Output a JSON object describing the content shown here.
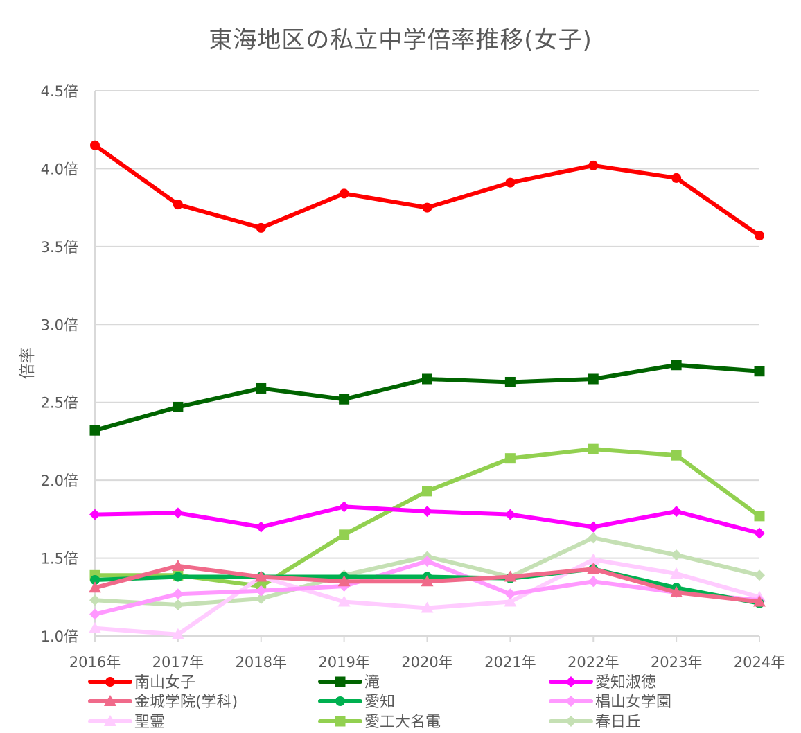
{
  "chart_data": {
    "type": "line",
    "title": "東海地区の私立中学倍率推移(女子)",
    "xlabel": "",
    "ylabel": "倍率",
    "ylim": [
      1.0,
      4.5
    ],
    "y_ticks": [
      1.0,
      1.5,
      2.0,
      2.5,
      3.0,
      3.5,
      4.0,
      4.5
    ],
    "y_tick_labels": [
      "1.0倍",
      "1.5倍",
      "2.0倍",
      "2.5倍",
      "3.0倍",
      "3.5倍",
      "4.0倍",
      "4.5倍"
    ],
    "categories": [
      "2016年",
      "2017年",
      "2018年",
      "2019年",
      "2020年",
      "2021年",
      "2022年",
      "2023年",
      "2024年"
    ],
    "grid": true,
    "legend_position": "bottom",
    "series": [
      {
        "name": "南山女子",
        "color": "#ff0000",
        "marker": "circle",
        "values": [
          4.15,
          3.77,
          3.62,
          3.84,
          3.75,
          3.91,
          4.02,
          3.94,
          3.57
        ]
      },
      {
        "name": "滝",
        "color": "#006400",
        "marker": "square",
        "values": [
          2.32,
          2.47,
          2.59,
          2.52,
          2.65,
          2.63,
          2.65,
          2.74,
          2.7
        ]
      },
      {
        "name": "愛知淑徳",
        "color": "#ff00ff",
        "marker": "diamond",
        "values": [
          1.78,
          1.79,
          1.7,
          1.83,
          1.8,
          1.78,
          1.7,
          1.8,
          1.66
        ]
      },
      {
        "name": "金城学院(学科)",
        "color": "#f06a8a",
        "marker": "triangle",
        "values": [
          1.31,
          1.45,
          1.38,
          1.35,
          1.35,
          1.38,
          1.43,
          1.28,
          1.22
        ]
      },
      {
        "name": "愛知",
        "color": "#00b050",
        "marker": "circle",
        "values": [
          1.36,
          1.38,
          1.38,
          1.38,
          1.38,
          1.37,
          1.43,
          1.31,
          1.21
        ]
      },
      {
        "name": "椙山女学園",
        "color": "#ff99ff",
        "marker": "diamond",
        "values": [
          1.14,
          1.27,
          1.29,
          1.32,
          1.48,
          1.27,
          1.35,
          1.28,
          1.23
        ]
      },
      {
        "name": "聖霊",
        "color": "#ffccff",
        "marker": "triangle",
        "values": [
          1.05,
          1.01,
          1.38,
          1.22,
          1.18,
          1.22,
          1.49,
          1.4,
          1.25
        ]
      },
      {
        "name": "愛工大名電",
        "color": "#92d050",
        "marker": "square",
        "values": [
          1.39,
          1.39,
          1.32,
          1.65,
          1.93,
          2.14,
          2.2,
          2.16,
          1.77
        ]
      },
      {
        "name": "春日丘",
        "color": "#c5e0b4",
        "marker": "diamond",
        "values": [
          1.23,
          1.2,
          1.24,
          1.39,
          1.51,
          1.38,
          1.63,
          1.52,
          1.39
        ]
      }
    ]
  }
}
